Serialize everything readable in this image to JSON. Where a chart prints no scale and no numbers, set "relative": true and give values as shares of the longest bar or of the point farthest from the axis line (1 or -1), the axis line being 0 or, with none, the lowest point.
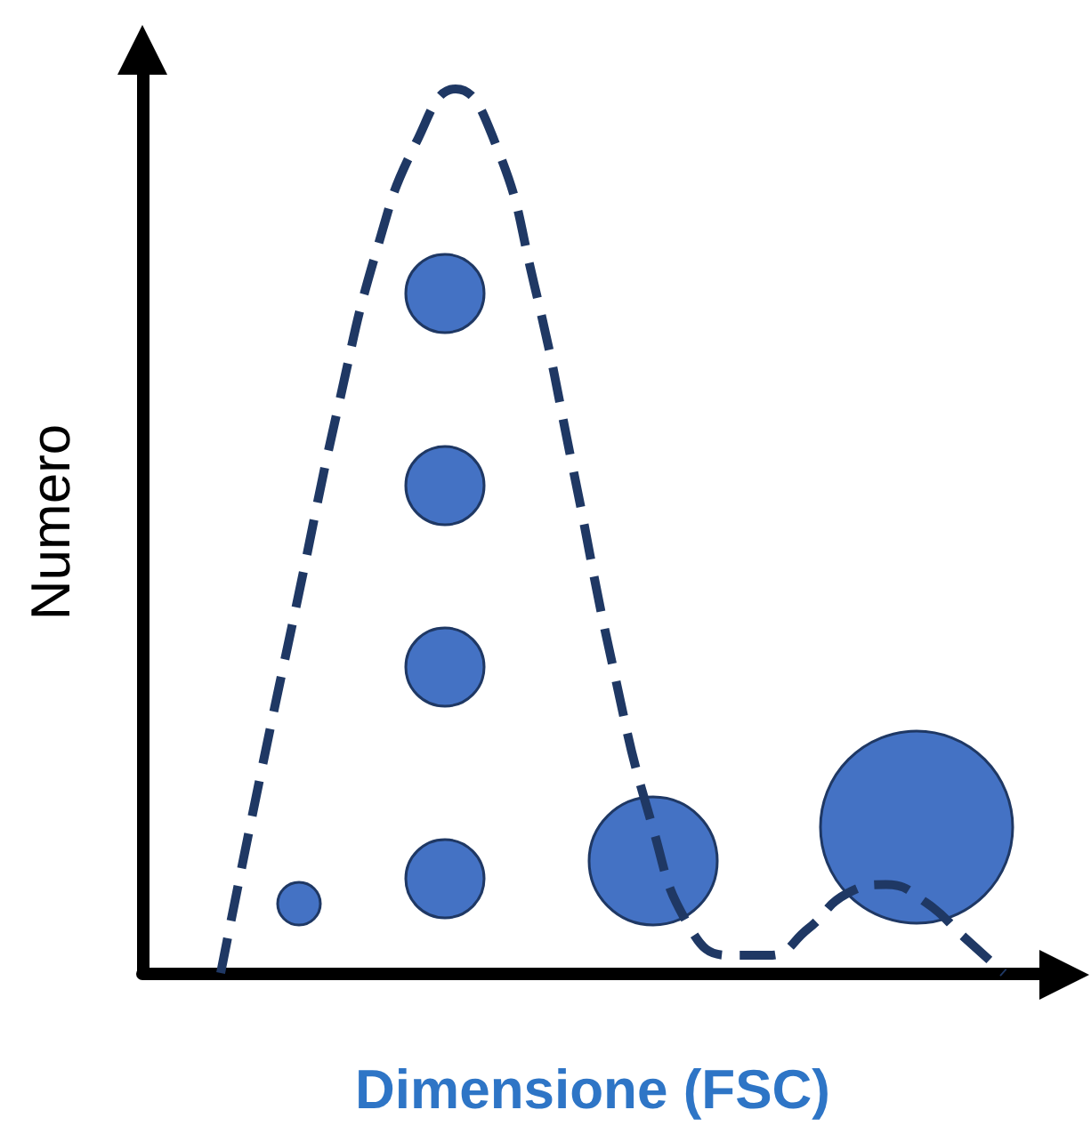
{
  "chart_data": {
    "type": "line",
    "xlabel": "Dimensione (FSC)",
    "ylabel": "Numero",
    "relative": true,
    "categories": [
      null,
      null,
      null,
      null,
      null,
      null,
      null,
      null,
      null,
      null,
      null,
      null,
      null,
      null,
      null,
      null,
      null,
      null,
      null,
      null,
      null,
      null,
      null,
      null
    ],
    "series": [
      {
        "color": "#1f3864",
        "values": [
          null,
          null,
          0,
          0.22,
          0.43,
          0.64,
          0.82,
          0.94,
          1.0,
          0.94,
          0.78,
          0.57,
          0.35,
          0.17,
          0.05,
          0.02,
          0.02,
          0.05,
          0.09,
          0.1,
          0.08,
          0.04,
          0,
          null
        ]
      }
    ],
    "line_style": "dashed",
    "marker": "none",
    "grid": false
  }
}
